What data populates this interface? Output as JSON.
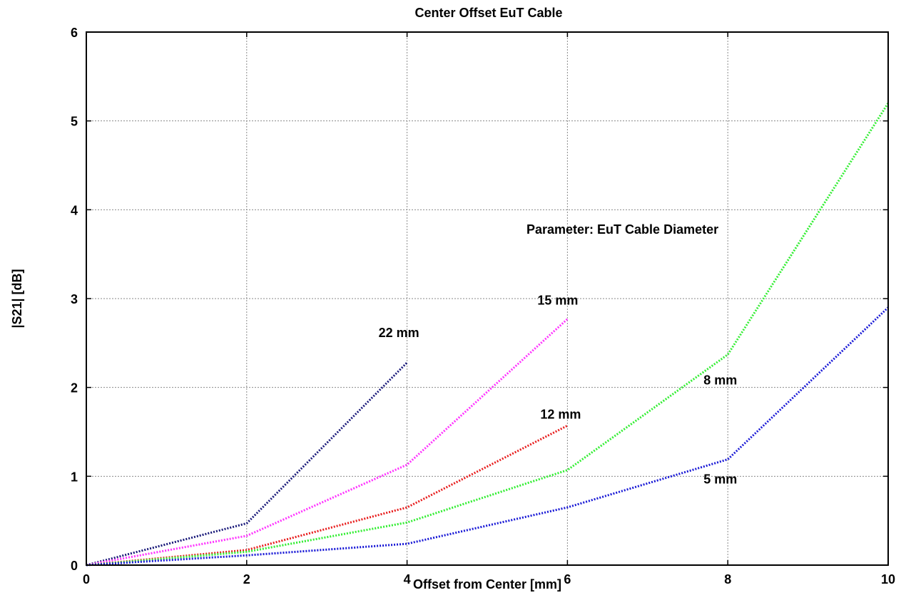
{
  "chart_data": {
    "type": "line",
    "title": "Center Offset EuT Cable",
    "xlabel": "Offset from Center [mm]",
    "ylabel": "|S21| [dB]",
    "xlim": [
      0,
      10
    ],
    "ylim": [
      0,
      6
    ],
    "xticks": [
      "0",
      "2",
      "4",
      "6",
      "8",
      "10"
    ],
    "yticks": [
      "0",
      "1",
      "2",
      "3",
      "4",
      "5",
      "6"
    ],
    "grid": true,
    "annotation": "Parameter: EuT Cable Diameter",
    "series": [
      {
        "name": "22 mm",
        "color": "#1a1a7a",
        "x": [
          0,
          2,
          4
        ],
        "y": [
          0,
          0.47,
          2.28
        ]
      },
      {
        "name": "15 mm",
        "color": "#ff33ff",
        "x": [
          0,
          2,
          4,
          6
        ],
        "y": [
          0,
          0.33,
          1.13,
          2.77
        ]
      },
      {
        "name": "12 mm",
        "color": "#e81e1e",
        "x": [
          0,
          2,
          4,
          6
        ],
        "y": [
          0,
          0.17,
          0.65,
          1.57
        ]
      },
      {
        "name": "8 mm",
        "color": "#33ee33",
        "x": [
          0,
          2,
          4,
          6,
          8,
          10
        ],
        "y": [
          0,
          0.15,
          0.48,
          1.07,
          2.37,
          5.2
        ]
      },
      {
        "name": "5 mm",
        "color": "#1a1ad6",
        "x": [
          0,
          2,
          4,
          6,
          8,
          10
        ],
        "y": [
          0,
          0.11,
          0.24,
          0.65,
          1.19,
          2.9
        ]
      }
    ]
  }
}
